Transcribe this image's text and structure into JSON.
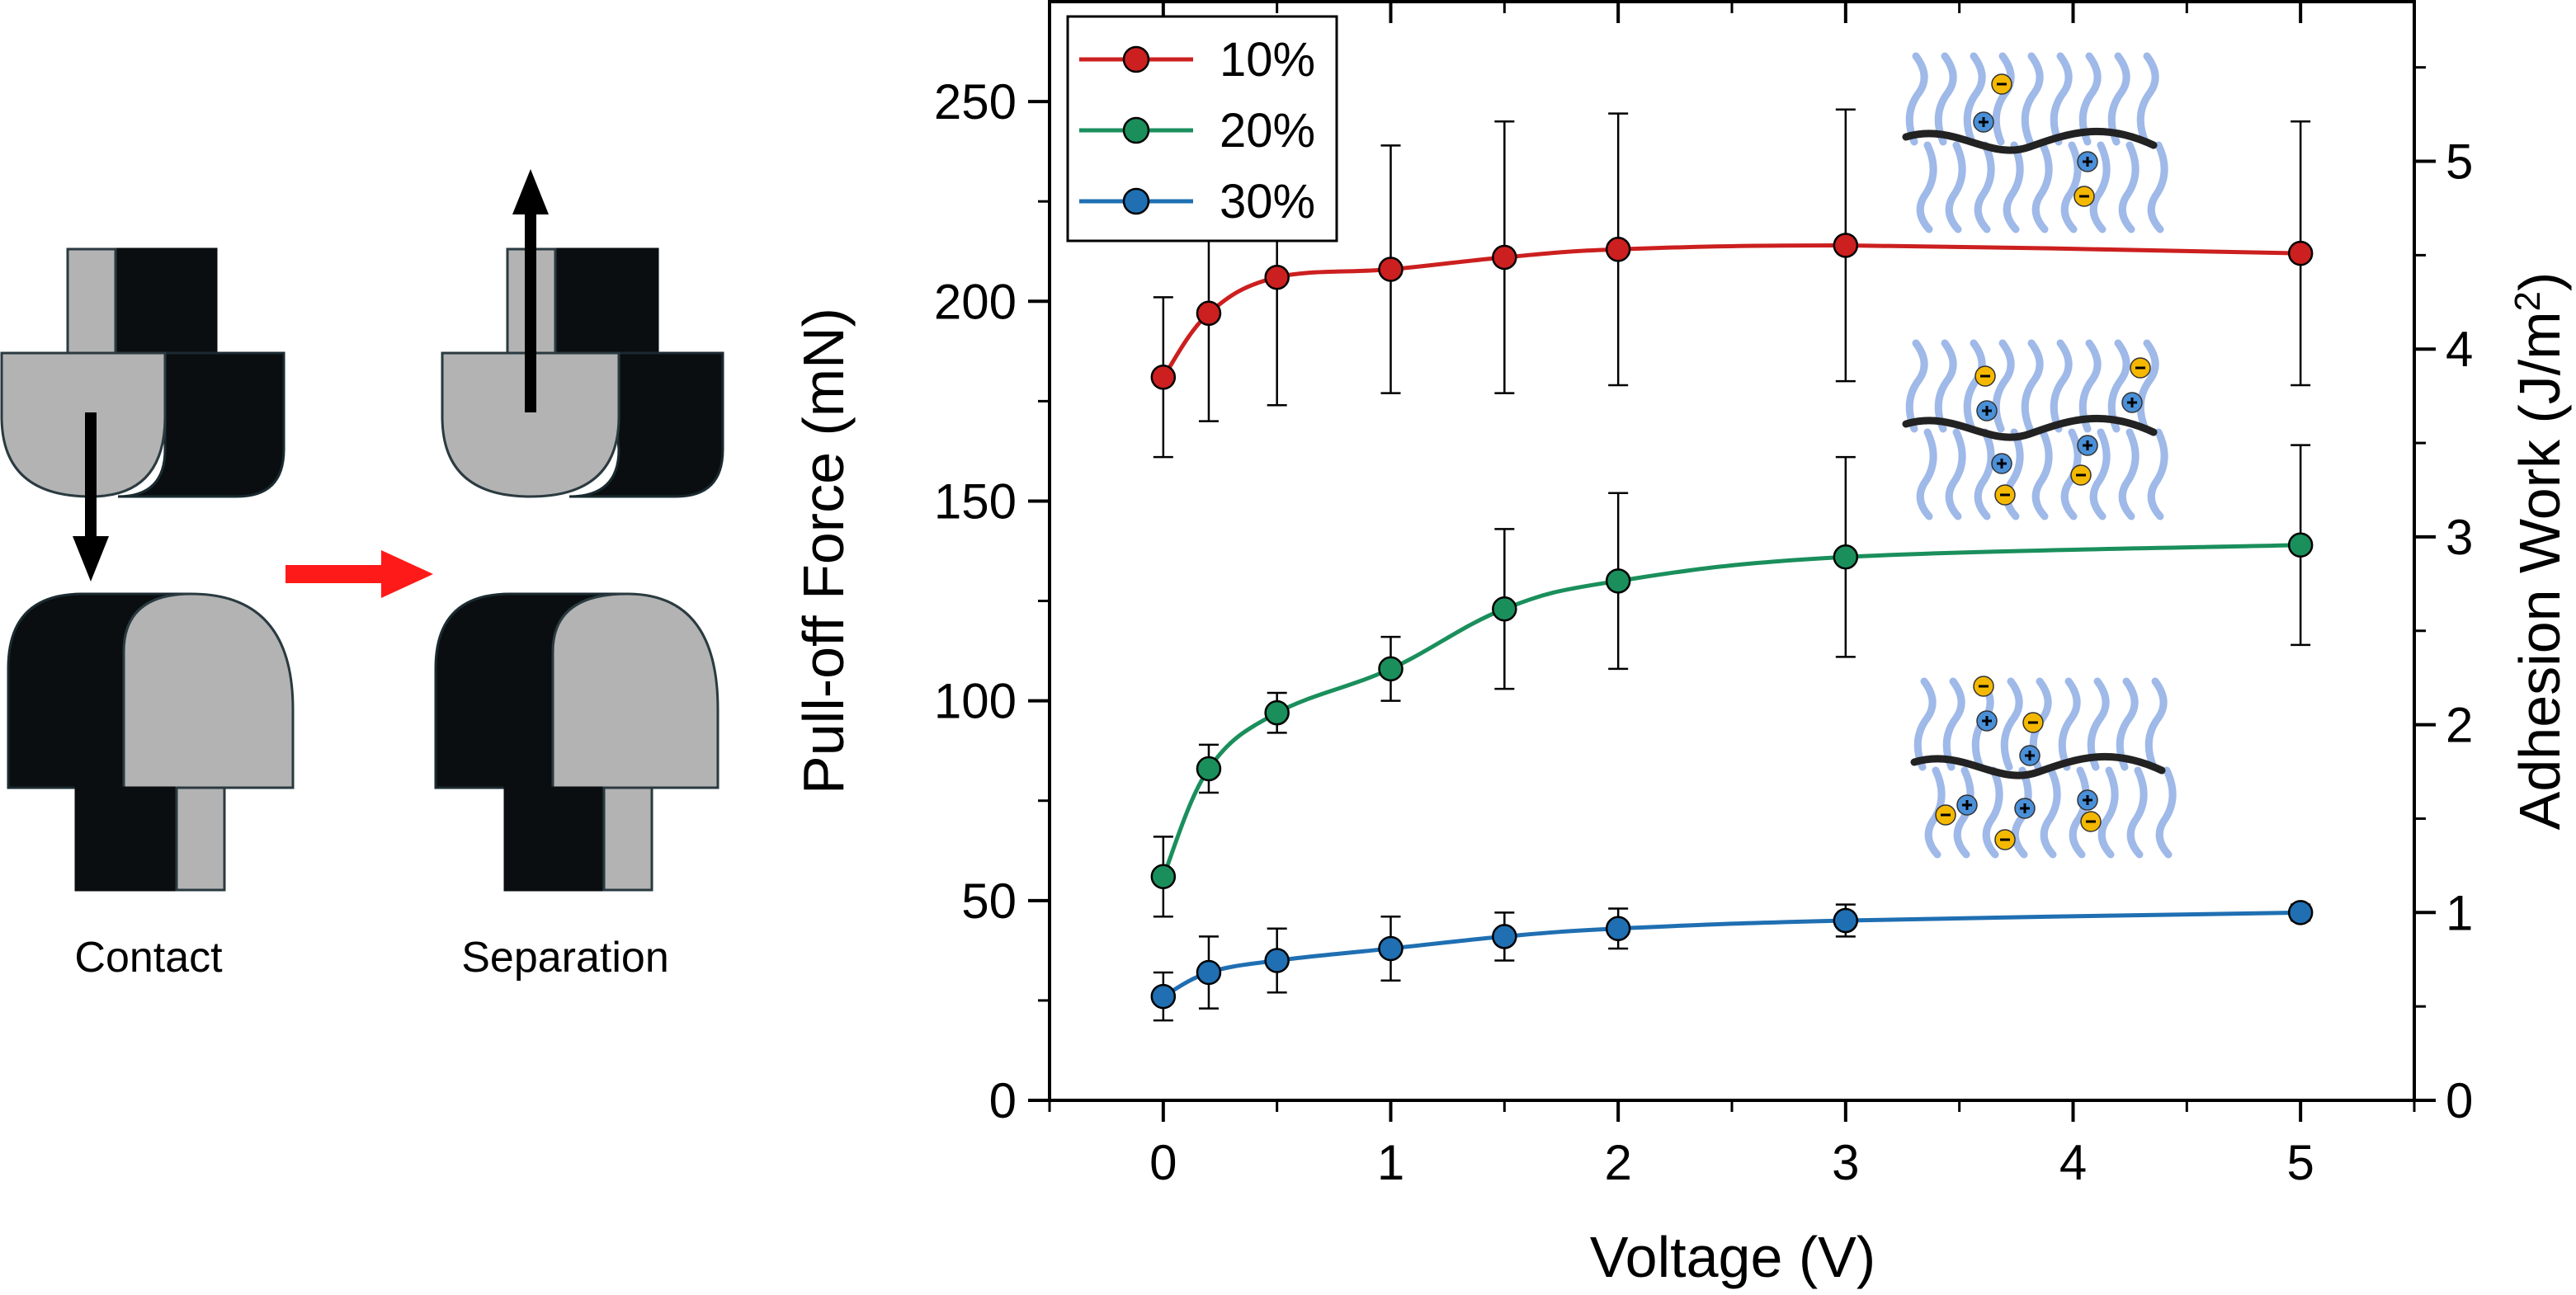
{
  "diagram": {
    "contact_label": "Contact",
    "separation_label": "Separation",
    "colors": {
      "gray": "#b3b3b3",
      "black": "#0a0e10",
      "arrow": "#000000",
      "transition_arrow": "#ff1a1a"
    },
    "icons": [
      "contact-probe-icon",
      "separation-probe-icon",
      "pull-arrow-icon",
      "transition-arrow-icon"
    ]
  },
  "chart_data": {
    "type": "line",
    "x": [
      0,
      0.2,
      0.5,
      1,
      1.5,
      2,
      3,
      5
    ],
    "series": [
      {
        "name": "10%",
        "color": "#cc1f1f",
        "values": [
          181,
          197,
          206,
          208,
          211,
          213,
          214,
          212
        ],
        "errors": [
          20,
          27,
          32,
          31,
          34,
          34,
          34,
          33
        ]
      },
      {
        "name": "20%",
        "color": "#1a8f5c",
        "values": [
          56,
          83,
          97,
          108,
          123,
          130,
          136,
          139
        ],
        "errors": [
          10,
          6,
          5,
          8,
          20,
          22,
          25,
          25
        ]
      },
      {
        "name": "30%",
        "color": "#1f6fb2",
        "values": [
          26,
          32,
          35,
          38,
          41,
          43,
          45,
          47
        ],
        "errors": [
          6,
          9,
          8,
          8,
          6,
          5,
          4,
          2
        ]
      }
    ],
    "xlabel": "Voltage (V)",
    "ylabel": "Pull-off Force (mN)",
    "y2label_main": "Adhesion Work (J/m",
    "y2label_sup": "2",
    "y2label_end": ")",
    "xlim": [
      -0.5,
      5.5
    ],
    "ylim": [
      0,
      275
    ],
    "y2lim": [
      0,
      5.85
    ],
    "xticks": [
      0,
      1,
      2,
      3,
      4,
      5
    ],
    "yticks": [
      0,
      50,
      100,
      150,
      200,
      250
    ],
    "y2ticks": [
      0,
      1,
      2,
      3,
      4,
      5
    ],
    "legend": "top-left",
    "insets": [
      "polymer-chain-10-icon",
      "polymer-chain-20-icon",
      "polymer-chain-30-icon"
    ]
  }
}
